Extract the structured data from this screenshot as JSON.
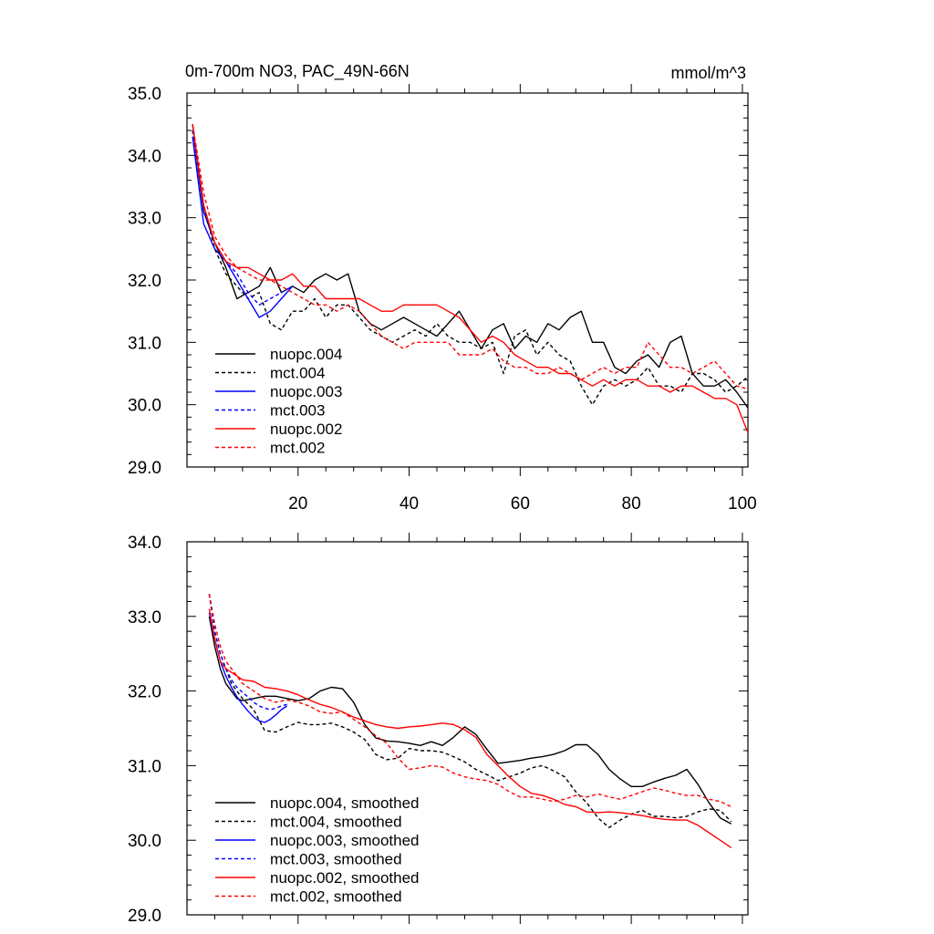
{
  "chart_data": [
    {
      "type": "line",
      "title": "0m-700m NO3, PAC_49N-66N",
      "units": "mmol/m^3",
      "xlim": [
        0,
        101
      ],
      "ylim": [
        29.0,
        35.0
      ],
      "xticks": [
        20,
        40,
        60,
        80,
        100
      ],
      "xtick_labels": [
        "20",
        "40",
        "60",
        "80",
        "100"
      ],
      "yticks": [
        29.0,
        30.0,
        31.0,
        32.0,
        33.0,
        34.0,
        35.0
      ],
      "ytick_labels": [
        "29.0",
        "30.0",
        "31.0",
        "32.0",
        "33.0",
        "34.0",
        "35.0"
      ],
      "legend_position": "bottom-left",
      "series": [
        {
          "name": "nuopc.004",
          "color": "#000000",
          "dash": "solid",
          "x": [
            1,
            3,
            5,
            7,
            9,
            11,
            13,
            15,
            17,
            19,
            21,
            23,
            25,
            27,
            29,
            31,
            33,
            35,
            37,
            39,
            41,
            43,
            45,
            47,
            49,
            51,
            53,
            55,
            57,
            59,
            61,
            63,
            65,
            67,
            69,
            71,
            73,
            75,
            77,
            79,
            81,
            83,
            85,
            87,
            89,
            91,
            93,
            95,
            97,
            99,
            101
          ],
          "y": [
            34.5,
            33.1,
            32.6,
            32.2,
            31.7,
            31.8,
            31.9,
            32.2,
            31.8,
            31.9,
            31.8,
            32.0,
            32.1,
            32.0,
            32.1,
            31.5,
            31.3,
            31.2,
            31.3,
            31.4,
            31.3,
            31.2,
            31.1,
            31.3,
            31.5,
            31.2,
            30.9,
            31.2,
            31.3,
            30.9,
            31.1,
            31.0,
            31.3,
            31.2,
            31.4,
            31.5,
            31.0,
            31.0,
            30.6,
            30.5,
            30.7,
            30.8,
            30.6,
            31.0,
            31.1,
            30.5,
            30.3,
            30.3,
            30.4,
            30.2,
            29.95
          ]
        },
        {
          "name": "mct.004",
          "color": "#000000",
          "dash": "dashed",
          "x": [
            1,
            3,
            5,
            7,
            9,
            11,
            13,
            15,
            17,
            19,
            21,
            23,
            25,
            27,
            29,
            31,
            33,
            35,
            37,
            39,
            41,
            43,
            45,
            47,
            49,
            51,
            53,
            55,
            57,
            59,
            61,
            63,
            65,
            67,
            69,
            71,
            73,
            75,
            77,
            79,
            81,
            83,
            85,
            87,
            89,
            91,
            93,
            95,
            97,
            99,
            101
          ],
          "y": [
            34.4,
            33.2,
            32.5,
            32.1,
            31.9,
            31.7,
            31.8,
            31.3,
            31.2,
            31.5,
            31.5,
            31.7,
            31.4,
            31.6,
            31.6,
            31.4,
            31.2,
            31.1,
            31.0,
            31.1,
            31.2,
            31.1,
            31.3,
            31.1,
            31.0,
            31.0,
            30.9,
            31.0,
            30.5,
            31.1,
            31.2,
            30.8,
            31.0,
            30.8,
            30.7,
            30.3,
            30.0,
            30.3,
            30.4,
            30.3,
            30.4,
            30.6,
            30.3,
            30.3,
            30.2,
            30.5,
            30.5,
            30.4,
            30.2,
            30.3,
            30.45
          ]
        },
        {
          "name": "nuopc.003",
          "color": "#0000ff",
          "dash": "solid",
          "x": [
            1,
            3,
            5,
            7,
            9,
            11,
            13,
            15,
            17,
            19
          ],
          "y": [
            34.3,
            32.9,
            32.5,
            32.3,
            32.0,
            31.7,
            31.4,
            31.5,
            31.7,
            31.9
          ]
        },
        {
          "name": "mct.003",
          "color": "#0000ff",
          "dash": "dashed",
          "x": [
            1,
            3,
            5,
            7,
            9,
            11,
            13,
            15,
            17,
            19
          ],
          "y": [
            34.4,
            33.1,
            32.6,
            32.3,
            32.1,
            31.8,
            31.6,
            31.7,
            31.8,
            31.9
          ]
        },
        {
          "name": "nuopc.002",
          "color": "#ff0000",
          "dash": "solid",
          "x": [
            1,
            3,
            5,
            7,
            9,
            11,
            13,
            15,
            17,
            19,
            21,
            23,
            25,
            27,
            29,
            31,
            33,
            35,
            37,
            39,
            41,
            43,
            45,
            47,
            49,
            51,
            53,
            55,
            57,
            59,
            61,
            63,
            65,
            67,
            69,
            71,
            73,
            75,
            77,
            79,
            81,
            83,
            85,
            87,
            89,
            91,
            93,
            95,
            97,
            99,
            101
          ],
          "y": [
            34.5,
            33.2,
            32.6,
            32.3,
            32.2,
            32.2,
            32.1,
            32.0,
            32.0,
            32.1,
            31.9,
            31.9,
            31.7,
            31.7,
            31.7,
            31.7,
            31.6,
            31.5,
            31.5,
            31.6,
            31.6,
            31.6,
            31.6,
            31.5,
            31.4,
            31.2,
            31.0,
            31.1,
            31.0,
            30.8,
            30.7,
            30.6,
            30.6,
            30.5,
            30.5,
            30.4,
            30.3,
            30.4,
            30.3,
            30.4,
            30.4,
            30.3,
            30.3,
            30.2,
            30.3,
            30.3,
            30.2,
            30.1,
            30.1,
            30.0,
            29.55
          ]
        },
        {
          "name": "mct.002",
          "color": "#ff0000",
          "dash": "dashed",
          "x": [
            1,
            3,
            5,
            7,
            9,
            11,
            13,
            15,
            17,
            19,
            21,
            23,
            25,
            27,
            29,
            31,
            33,
            35,
            37,
            39,
            41,
            43,
            45,
            47,
            49,
            51,
            53,
            55,
            57,
            59,
            61,
            63,
            65,
            67,
            69,
            71,
            73,
            75,
            77,
            79,
            81,
            83,
            85,
            87,
            89,
            91,
            93,
            95,
            97,
            99,
            101
          ],
          "y": [
            34.5,
            33.4,
            32.7,
            32.4,
            32.2,
            32.1,
            32.0,
            32.0,
            31.9,
            31.8,
            31.7,
            31.6,
            31.6,
            31.5,
            31.6,
            31.5,
            31.3,
            31.1,
            31.0,
            30.9,
            31.0,
            31.0,
            31.0,
            31.0,
            30.8,
            30.8,
            30.8,
            30.9,
            30.7,
            30.6,
            30.6,
            30.5,
            30.5,
            30.6,
            30.5,
            30.4,
            30.5,
            30.6,
            30.5,
            30.6,
            30.6,
            31.0,
            30.8,
            30.6,
            30.6,
            30.5,
            30.6,
            30.7,
            30.5,
            30.3,
            30.25
          ]
        }
      ]
    },
    {
      "type": "line",
      "xlim": [
        0,
        101
      ],
      "ylim": [
        29.0,
        34.0
      ],
      "yticks": [
        29.0,
        30.0,
        31.0,
        32.0,
        33.0,
        34.0
      ],
      "ytick_labels": [
        "29.0",
        "30.0",
        "31.0",
        "32.0",
        "33.0",
        "34.0"
      ],
      "legend_position": "bottom-left",
      "series": [
        {
          "name": "nuopc.004, smoothed",
          "color": "#000000",
          "dash": "solid",
          "x": [
            4,
            5,
            6,
            7,
            8,
            9,
            10,
            12,
            14,
            16,
            18,
            20,
            22,
            24,
            26,
            28,
            30,
            32,
            34,
            36,
            38,
            40,
            42,
            44,
            46,
            48,
            50,
            52,
            54,
            56,
            58,
            60,
            62,
            64,
            66,
            68,
            70,
            72,
            74,
            76,
            78,
            80,
            82,
            84,
            86,
            88,
            90,
            92,
            94,
            96,
            98
          ],
          "y": [
            33.0,
            32.6,
            32.3,
            32.1,
            32.0,
            31.9,
            31.87,
            31.9,
            31.93,
            31.93,
            31.9,
            31.87,
            31.9,
            32.0,
            32.05,
            32.03,
            31.85,
            31.55,
            31.37,
            31.33,
            31.32,
            31.3,
            31.27,
            31.32,
            31.27,
            31.38,
            31.52,
            31.42,
            31.22,
            31.03,
            31.05,
            31.07,
            31.1,
            31.12,
            31.15,
            31.2,
            31.28,
            31.28,
            31.15,
            30.95,
            30.82,
            30.72,
            30.72,
            30.78,
            30.83,
            30.87,
            30.95,
            30.75,
            30.5,
            30.3,
            30.22
          ]
        },
        {
          "name": "mct.004, smoothed",
          "color": "#000000",
          "dash": "dashed",
          "x": [
            4,
            5,
            6,
            7,
            8,
            9,
            10,
            12,
            14,
            16,
            18,
            20,
            22,
            24,
            26,
            28,
            30,
            32,
            34,
            36,
            38,
            40,
            42,
            44,
            46,
            48,
            50,
            52,
            54,
            56,
            58,
            60,
            62,
            64,
            66,
            68,
            70,
            72,
            74,
            76,
            78,
            80,
            82,
            84,
            86,
            88,
            90,
            92,
            94,
            96,
            98
          ],
          "y": [
            33.3,
            32.8,
            32.5,
            32.3,
            32.1,
            32.0,
            31.9,
            31.75,
            31.47,
            31.45,
            31.52,
            31.58,
            31.55,
            31.55,
            31.57,
            31.52,
            31.45,
            31.35,
            31.15,
            31.08,
            31.1,
            31.23,
            31.2,
            31.2,
            31.18,
            31.12,
            31.05,
            30.95,
            30.88,
            30.8,
            30.85,
            30.9,
            30.97,
            31.0,
            30.93,
            30.85,
            30.65,
            30.5,
            30.3,
            30.17,
            30.27,
            30.35,
            30.4,
            30.32,
            30.32,
            30.3,
            30.32,
            30.38,
            30.42,
            30.4,
            30.25
          ]
        },
        {
          "name": "nuopc.003, smoothed",
          "color": "#0000ff",
          "dash": "solid",
          "x": [
            4,
            5,
            6,
            7,
            8,
            9,
            10,
            11,
            12,
            13,
            14,
            15,
            16,
            17,
            18
          ],
          "y": [
            33.05,
            32.7,
            32.4,
            32.2,
            32.05,
            31.92,
            31.82,
            31.73,
            31.65,
            31.6,
            31.58,
            31.62,
            31.68,
            31.75,
            31.8
          ]
        },
        {
          "name": "mct.003, smoothed",
          "color": "#0000ff",
          "dash": "dashed",
          "x": [
            4,
            5,
            6,
            7,
            8,
            9,
            10,
            11,
            12,
            13,
            14,
            15,
            16,
            17,
            18
          ],
          "y": [
            33.3,
            32.8,
            32.5,
            32.3,
            32.15,
            32.05,
            31.98,
            31.92,
            31.85,
            31.8,
            31.77,
            31.75,
            31.77,
            31.8,
            31.82
          ]
        },
        {
          "name": "nuopc.002, smoothed",
          "color": "#ff0000",
          "dash": "solid",
          "x": [
            4,
            5,
            6,
            7,
            8,
            9,
            10,
            12,
            14,
            16,
            18,
            20,
            22,
            24,
            26,
            28,
            30,
            32,
            34,
            36,
            38,
            40,
            42,
            44,
            46,
            48,
            50,
            52,
            54,
            56,
            58,
            60,
            62,
            64,
            66,
            68,
            70,
            72,
            74,
            76,
            78,
            80,
            82,
            84,
            86,
            88,
            90,
            92,
            94,
            96,
            98
          ],
          "y": [
            33.1,
            32.7,
            32.4,
            32.3,
            32.25,
            32.2,
            32.15,
            32.13,
            32.05,
            32.03,
            32.0,
            31.95,
            31.88,
            31.82,
            31.78,
            31.72,
            31.65,
            31.6,
            31.55,
            31.52,
            31.5,
            31.52,
            31.53,
            31.55,
            31.57,
            31.55,
            31.48,
            31.38,
            31.15,
            31.0,
            30.85,
            30.72,
            30.63,
            30.6,
            30.55,
            30.48,
            30.45,
            30.38,
            30.37,
            30.38,
            30.37,
            30.35,
            30.33,
            30.3,
            30.28,
            30.27,
            30.27,
            30.2,
            30.1,
            30.0,
            29.9
          ]
        },
        {
          "name": "mct.002, smoothed",
          "color": "#ff0000",
          "dash": "dashed",
          "x": [
            4,
            5,
            6,
            7,
            8,
            9,
            10,
            12,
            14,
            16,
            18,
            20,
            22,
            24,
            26,
            28,
            30,
            32,
            34,
            36,
            38,
            40,
            42,
            44,
            46,
            48,
            50,
            52,
            54,
            56,
            58,
            60,
            62,
            64,
            66,
            68,
            70,
            72,
            74,
            76,
            78,
            80,
            82,
            84,
            86,
            88,
            90,
            92,
            94,
            96,
            98
          ],
          "y": [
            33.3,
            32.9,
            32.6,
            32.4,
            32.3,
            32.2,
            32.1,
            32.0,
            31.9,
            31.85,
            31.88,
            31.85,
            31.8,
            31.72,
            31.7,
            31.72,
            31.62,
            31.52,
            31.4,
            31.3,
            31.1,
            30.95,
            30.97,
            31.0,
            30.98,
            30.9,
            30.85,
            30.82,
            30.8,
            30.75,
            30.65,
            30.58,
            30.58,
            30.55,
            30.52,
            30.55,
            30.6,
            30.58,
            30.62,
            30.58,
            30.55,
            30.6,
            30.65,
            30.7,
            30.67,
            30.63,
            30.6,
            30.6,
            30.55,
            30.52,
            30.45
          ]
        }
      ]
    }
  ]
}
